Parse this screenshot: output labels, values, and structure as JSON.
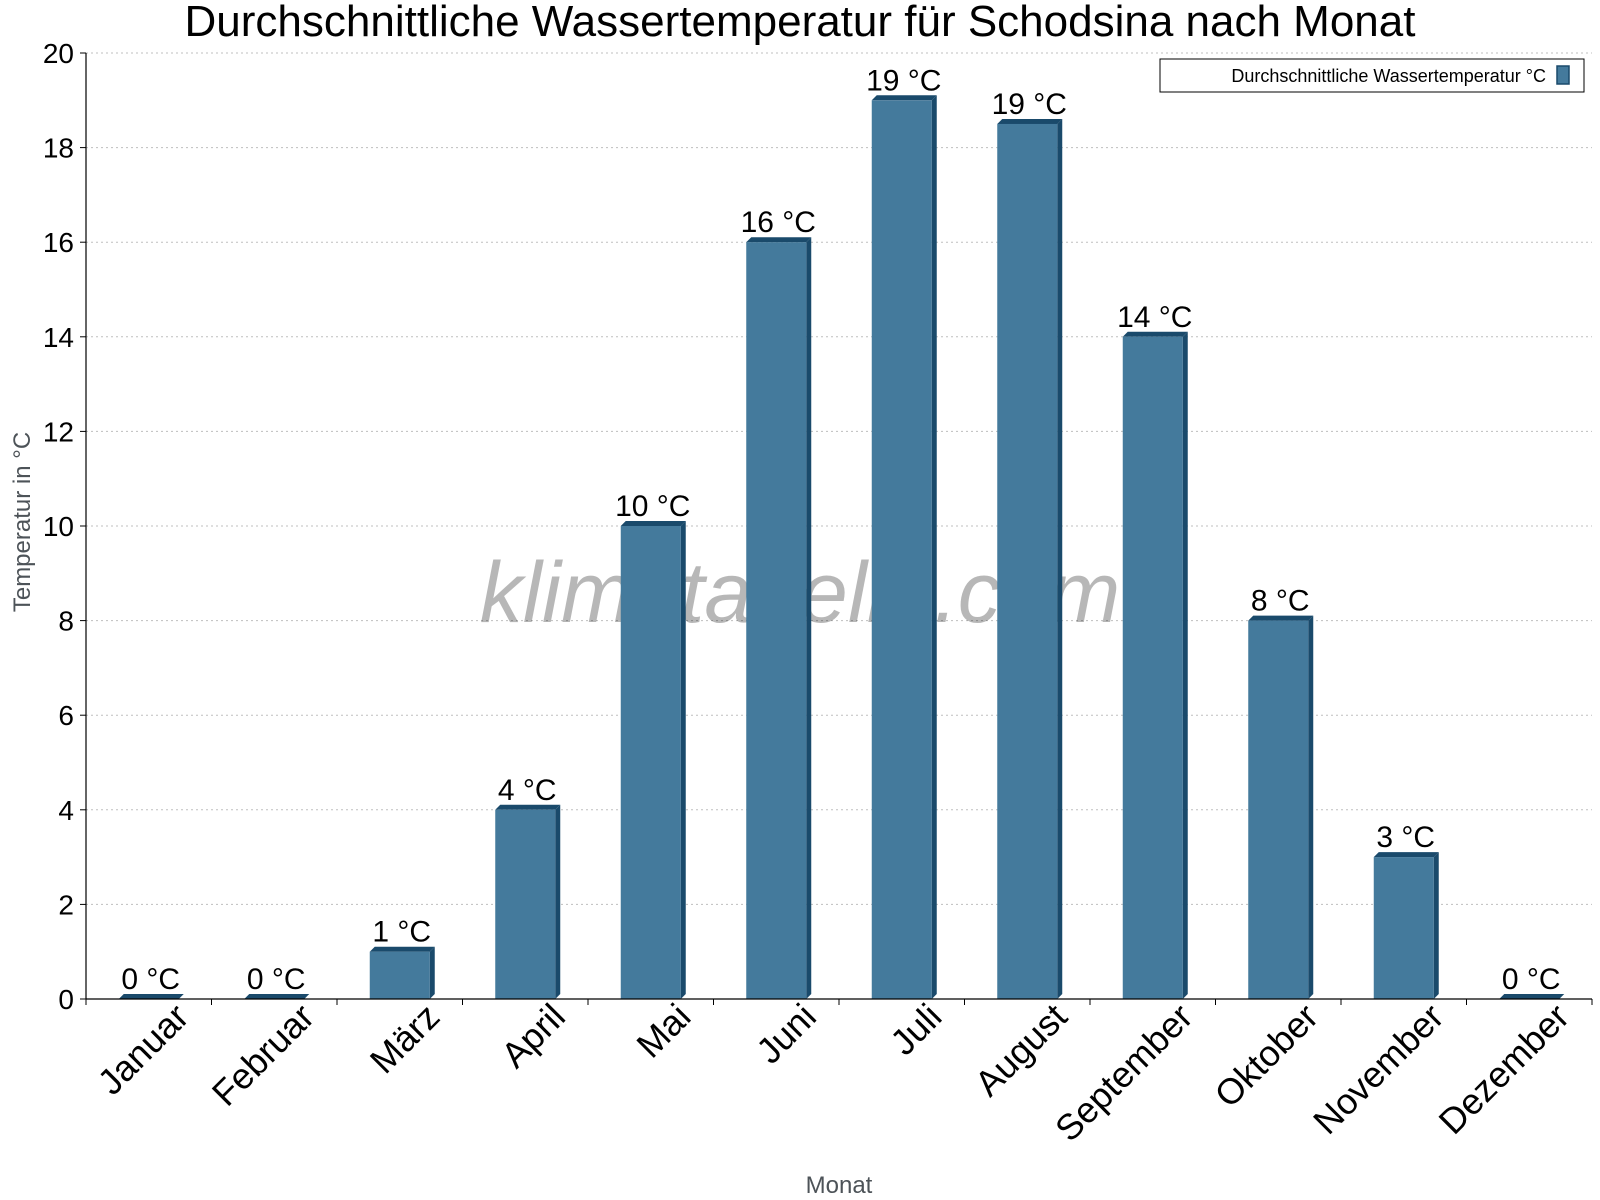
{
  "chart_data": {
    "type": "bar",
    "title": "Durchschnittliche Wassertemperatur für Schodsina nach Monat",
    "xlabel": "Monat",
    "ylabel": "Temperatur in °C",
    "ylim": [
      0,
      20
    ],
    "yticks": [
      0,
      2,
      4,
      6,
      8,
      10,
      12,
      14,
      16,
      18,
      20
    ],
    "grid": true,
    "legend_position": "top-right",
    "categories": [
      "Januar",
      "Februar",
      "März",
      "April",
      "Mai",
      "Juni",
      "Juli",
      "August",
      "September",
      "Oktober",
      "November",
      "Dezember"
    ],
    "series": [
      {
        "name": "Durchschnittliche Wassertemperatur °C",
        "color": "#447a9c",
        "values": [
          0,
          0,
          1,
          4,
          10,
          16,
          19,
          18.5,
          14,
          8,
          3,
          0
        ],
        "data_labels": [
          "0 °C",
          "0 °C",
          "1 °C",
          "4 °C",
          "10 °C",
          "16 °C",
          "19 °C",
          "19 °C",
          "14 °C",
          "8 °C",
          "3 °C",
          "0 °C"
        ]
      }
    ],
    "watermark": "klimatabelle.com"
  }
}
